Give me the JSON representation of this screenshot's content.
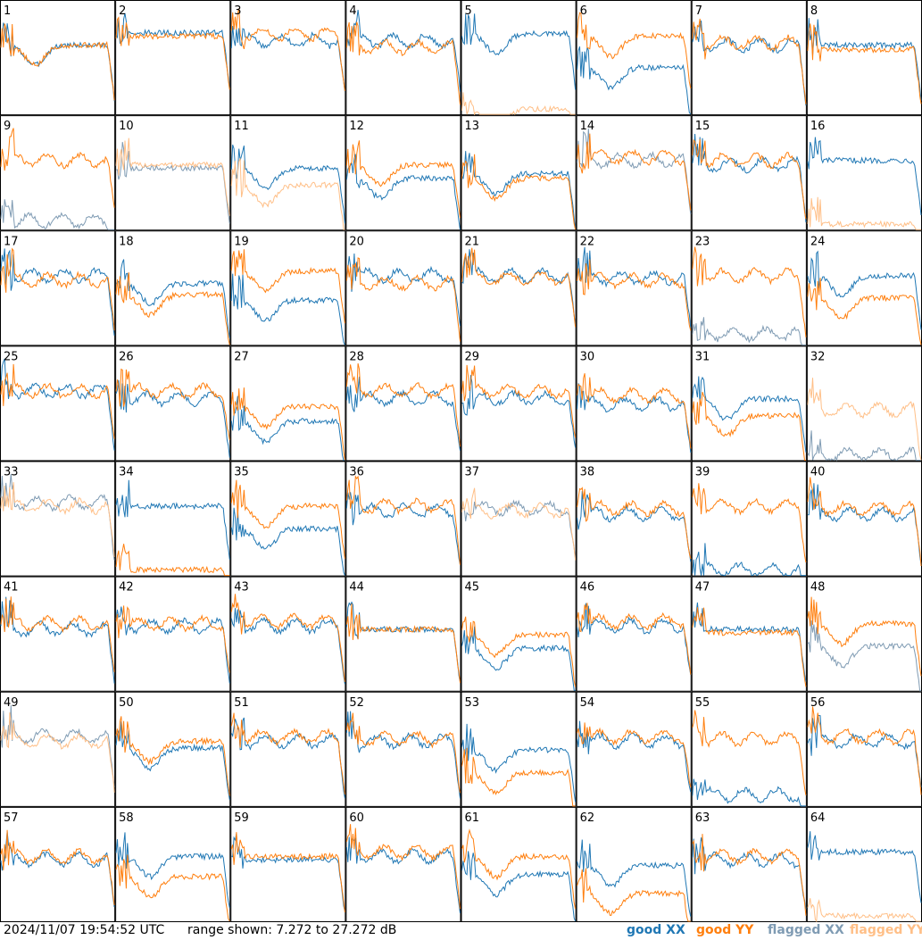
{
  "timestamp": "2024/11/07 19:54:52 UTC",
  "range_text": "range shown: 7.272 to 27.272 dB",
  "legend": {
    "good_xx": "good XX",
    "good_yy": "good YY",
    "flagged_xx": "flagged XX",
    "flagged_yy": "flagged YY"
  },
  "colors": {
    "good_xx": "#1f77b4",
    "good_yy": "#ff7f0e",
    "flagged_xx": "#7f9bb3",
    "flagged_yy": "#ffbf87"
  },
  "chart_data": {
    "type": "line",
    "grid": "8x8 small multiples, one panel per tile",
    "ylim": [
      7.272,
      27.272
    ],
    "yunit": "dB",
    "series_names": [
      "XX",
      "YY"
    ],
    "panels": [
      {
        "id": "1",
        "xx": "good",
        "yy": "good",
        "xx_level": 0.62,
        "yy_level": 0.62,
        "shape": "dip"
      },
      {
        "id": "2",
        "xx": "good",
        "yy": "good",
        "xx_level": 0.73,
        "yy_level": 0.7,
        "shape": "flat"
      },
      {
        "id": "3",
        "xx": "good",
        "yy": "good",
        "xx_level": 0.66,
        "yy_level": 0.72,
        "shape": "bumpy"
      },
      {
        "id": "4",
        "xx": "good",
        "yy": "good",
        "xx_level": 0.66,
        "yy_level": 0.6,
        "shape": "bumpy"
      },
      {
        "id": "5",
        "xx": "good",
        "yy": "flagged",
        "xx_level": 0.72,
        "yy_level": 0.05,
        "shape": "dip"
      },
      {
        "id": "6",
        "xx": "good",
        "yy": "good",
        "xx_level": 0.42,
        "yy_level": 0.7,
        "shape": "dip"
      },
      {
        "id": "7",
        "xx": "good",
        "yy": "good",
        "xx_level": 0.62,
        "yy_level": 0.64,
        "shape": "bumpy"
      },
      {
        "id": "8",
        "xx": "good",
        "yy": "good",
        "xx_level": 0.62,
        "yy_level": 0.58,
        "shape": "flat"
      },
      {
        "id": "9",
        "xx": "flagged",
        "yy": "good",
        "xx_level": 0.08,
        "yy_level": 0.62,
        "shape": "bumpy"
      },
      {
        "id": "10",
        "xx": "flagged",
        "yy": "flagged",
        "xx_level": 0.55,
        "yy_level": 0.58,
        "shape": "flat"
      },
      {
        "id": "11",
        "xx": "good",
        "yy": "flagged",
        "xx_level": 0.55,
        "yy_level": 0.4,
        "shape": "dip"
      },
      {
        "id": "12",
        "xx": "good",
        "yy": "good",
        "xx_level": 0.46,
        "yy_level": 0.58,
        "shape": "dip"
      },
      {
        "id": "13",
        "xx": "good",
        "yy": "good",
        "xx_level": 0.5,
        "yy_level": 0.46,
        "shape": "dip"
      },
      {
        "id": "14",
        "xx": "flagged",
        "yy": "good",
        "xx_level": 0.62,
        "yy_level": 0.65,
        "shape": "bumpy"
      },
      {
        "id": "15",
        "xx": "good",
        "yy": "good",
        "xx_level": 0.58,
        "yy_level": 0.62,
        "shape": "bumpy"
      },
      {
        "id": "16",
        "xx": "good",
        "yy": "flagged",
        "xx_level": 0.62,
        "yy_level": 0.05,
        "shape": "flat"
      },
      {
        "id": "17",
        "xx": "good",
        "yy": "good",
        "xx_level": 0.62,
        "yy_level": 0.58,
        "shape": "bumpy"
      },
      {
        "id": "18",
        "xx": "good",
        "yy": "good",
        "xx_level": 0.55,
        "yy_level": 0.45,
        "shape": "dip"
      },
      {
        "id": "19",
        "xx": "good",
        "yy": "good",
        "xx_level": 0.4,
        "yy_level": 0.66,
        "shape": "dip"
      },
      {
        "id": "20",
        "xx": "good",
        "yy": "good",
        "xx_level": 0.62,
        "yy_level": 0.55,
        "shape": "bumpy"
      },
      {
        "id": "21",
        "xx": "good",
        "yy": "good",
        "xx_level": 0.62,
        "yy_level": 0.6,
        "shape": "bumpy"
      },
      {
        "id": "22",
        "xx": "good",
        "yy": "good",
        "xx_level": 0.6,
        "yy_level": 0.58,
        "shape": "bumpy"
      },
      {
        "id": "23",
        "xx": "flagged",
        "yy": "good",
        "xx_level": 0.1,
        "yy_level": 0.62,
        "shape": "bumpy"
      },
      {
        "id": "24",
        "xx": "good",
        "yy": "good",
        "xx_level": 0.62,
        "yy_level": 0.42,
        "shape": "dip"
      },
      {
        "id": "25",
        "xx": "good",
        "yy": "good",
        "xx_level": 0.62,
        "yy_level": 0.62,
        "shape": "bumpy"
      },
      {
        "id": "26",
        "xx": "good",
        "yy": "good",
        "xx_level": 0.55,
        "yy_level": 0.62,
        "shape": "bumpy"
      },
      {
        "id": "27",
        "xx": "good",
        "yy": "good",
        "xx_level": 0.35,
        "yy_level": 0.48,
        "shape": "dip"
      },
      {
        "id": "28",
        "xx": "good",
        "yy": "good",
        "xx_level": 0.55,
        "yy_level": 0.62,
        "shape": "bumpy"
      },
      {
        "id": "29",
        "xx": "good",
        "yy": "good",
        "xx_level": 0.55,
        "yy_level": 0.62,
        "shape": "bumpy"
      },
      {
        "id": "30",
        "xx": "good",
        "yy": "good",
        "xx_level": 0.5,
        "yy_level": 0.58,
        "shape": "bumpy"
      },
      {
        "id": "31",
        "xx": "good",
        "yy": "good",
        "xx_level": 0.55,
        "yy_level": 0.4,
        "shape": "dip"
      },
      {
        "id": "32",
        "xx": "flagged",
        "yy": "flagged",
        "xx_level": 0.05,
        "yy_level": 0.45,
        "shape": "bumpy"
      },
      {
        "id": "33",
        "xx": "flagged",
        "yy": "flagged",
        "xx_level": 0.65,
        "yy_level": 0.62,
        "shape": "bumpy"
      },
      {
        "id": "34",
        "xx": "good",
        "yy": "good",
        "xx_level": 0.62,
        "yy_level": 0.05,
        "shape": "flat"
      },
      {
        "id": "35",
        "xx": "good",
        "yy": "good",
        "xx_level": 0.42,
        "yy_level": 0.62,
        "shape": "dip"
      },
      {
        "id": "36",
        "xx": "good",
        "yy": "good",
        "xx_level": 0.58,
        "yy_level": 0.62,
        "shape": "bumpy"
      },
      {
        "id": "37",
        "xx": "flagged",
        "yy": "flagged",
        "xx_level": 0.6,
        "yy_level": 0.58,
        "shape": "bumpy"
      },
      {
        "id": "38",
        "xx": "good",
        "yy": "good",
        "xx_level": 0.55,
        "yy_level": 0.6,
        "shape": "bumpy"
      },
      {
        "id": "39",
        "xx": "good",
        "yy": "good",
        "xx_level": 0.05,
        "yy_level": 0.62,
        "shape": "bumpy"
      },
      {
        "id": "40",
        "xx": "good",
        "yy": "good",
        "xx_level": 0.55,
        "yy_level": 0.6,
        "shape": "bumpy"
      },
      {
        "id": "41",
        "xx": "good",
        "yy": "good",
        "xx_level": 0.55,
        "yy_level": 0.6,
        "shape": "bumpy"
      },
      {
        "id": "42",
        "xx": "good",
        "yy": "good",
        "xx_level": 0.58,
        "yy_level": 0.6,
        "shape": "bumpy"
      },
      {
        "id": "43",
        "xx": "good",
        "yy": "good",
        "xx_level": 0.58,
        "yy_level": 0.62,
        "shape": "bumpy"
      },
      {
        "id": "44",
        "xx": "good",
        "yy": "good",
        "xx_level": 0.55,
        "yy_level": 0.55,
        "shape": "flat"
      },
      {
        "id": "45",
        "xx": "good",
        "yy": "good",
        "xx_level": 0.38,
        "yy_level": 0.5,
        "shape": "dip"
      },
      {
        "id": "46",
        "xx": "good",
        "yy": "good",
        "xx_level": 0.58,
        "yy_level": 0.62,
        "shape": "bumpy"
      },
      {
        "id": "47",
        "xx": "good",
        "yy": "good",
        "xx_level": 0.55,
        "yy_level": 0.52,
        "shape": "flat"
      },
      {
        "id": "48",
        "xx": "flagged",
        "yy": "good",
        "xx_level": 0.4,
        "yy_level": 0.6,
        "shape": "dip"
      },
      {
        "id": "49",
        "xx": "flagged",
        "yy": "flagged",
        "xx_level": 0.62,
        "yy_level": 0.58,
        "shape": "bumpy"
      },
      {
        "id": "50",
        "xx": "good",
        "yy": "good",
        "xx_level": 0.52,
        "yy_level": 0.58,
        "shape": "dip"
      },
      {
        "id": "51",
        "xx": "good",
        "yy": "good",
        "xx_level": 0.58,
        "yy_level": 0.62,
        "shape": "bumpy"
      },
      {
        "id": "52",
        "xx": "good",
        "yy": "good",
        "xx_level": 0.58,
        "yy_level": 0.6,
        "shape": "bumpy"
      },
      {
        "id": "53",
        "xx": "good",
        "yy": "good",
        "xx_level": 0.5,
        "yy_level": 0.3,
        "shape": "dip"
      },
      {
        "id": "54",
        "xx": "good",
        "yy": "good",
        "xx_level": 0.58,
        "yy_level": 0.62,
        "shape": "bumpy"
      },
      {
        "id": "55",
        "xx": "good",
        "yy": "good",
        "xx_level": 0.1,
        "yy_level": 0.6,
        "shape": "bumpy"
      },
      {
        "id": "56",
        "xx": "good",
        "yy": "good",
        "xx_level": 0.58,
        "yy_level": 0.62,
        "shape": "bumpy"
      },
      {
        "id": "57",
        "xx": "good",
        "yy": "good",
        "xx_level": 0.55,
        "yy_level": 0.58,
        "shape": "bumpy"
      },
      {
        "id": "58",
        "xx": "good",
        "yy": "good",
        "xx_level": 0.58,
        "yy_level": 0.4,
        "shape": "dip"
      },
      {
        "id": "59",
        "xx": "good",
        "yy": "good",
        "xx_level": 0.55,
        "yy_level": 0.58,
        "shape": "flat"
      },
      {
        "id": "60",
        "xx": "good",
        "yy": "good",
        "xx_level": 0.58,
        "yy_level": 0.62,
        "shape": "bumpy"
      },
      {
        "id": "61",
        "xx": "good",
        "yy": "good",
        "xx_level": 0.42,
        "yy_level": 0.58,
        "shape": "dip"
      },
      {
        "id": "62",
        "xx": "good",
        "yy": "good",
        "xx_level": 0.5,
        "yy_level": 0.25,
        "shape": "dip"
      },
      {
        "id": "63",
        "xx": "good",
        "yy": "good",
        "xx_level": 0.55,
        "yy_level": 0.58,
        "shape": "bumpy"
      },
      {
        "id": "64",
        "xx": "good",
        "yy": "flagged",
        "xx_level": 0.62,
        "yy_level": 0.05,
        "shape": "flat"
      }
    ]
  }
}
